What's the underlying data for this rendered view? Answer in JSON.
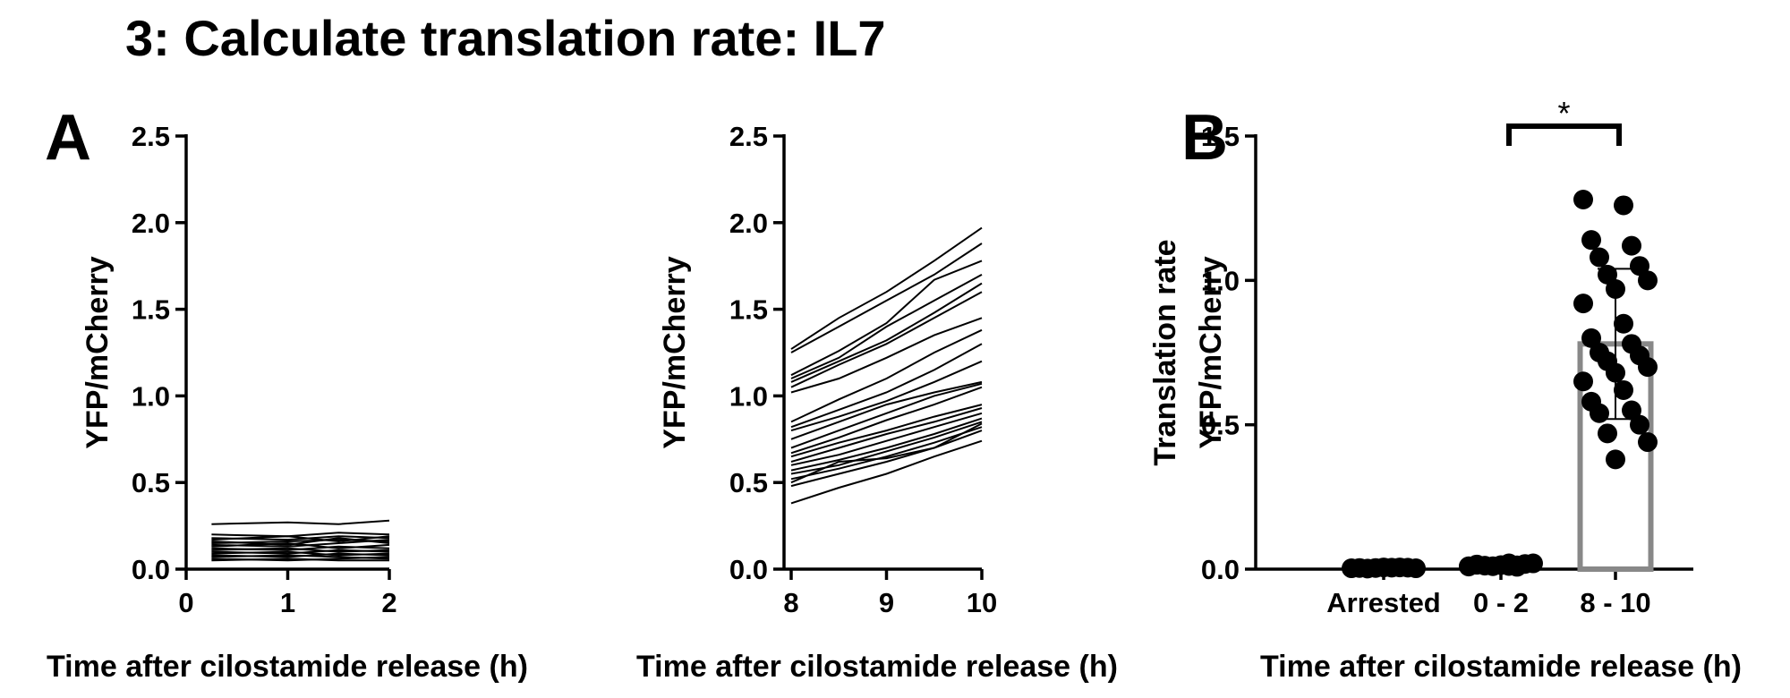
{
  "title": "3: Calculate translation rate: IL7",
  "chart_data": [
    {
      "type": "line",
      "panel_label": "A",
      "ylabel": "YFP/mCherry",
      "xlabel": "Time after cilostamide release (h)",
      "color": "#000000",
      "x": [
        0.25,
        1,
        1.5,
        2
      ],
      "xlim": [
        0,
        2
      ],
      "xticks": [
        0,
        1,
        2
      ],
      "ylim": [
        0,
        2.5
      ],
      "yticks": [
        {
          "value": 0,
          "label": "0.0"
        },
        0.5,
        {
          "value": 1,
          "label": "1.0"
        },
        1.5,
        {
          "value": 2,
          "label": "2.0"
        },
        2.5
      ],
      "series": [
        {
          "values": [
            0.26,
            0.27,
            0.26,
            0.28
          ]
        },
        {
          "values": [
            0.2,
            0.19,
            0.21,
            0.2
          ]
        },
        {
          "values": [
            0.18,
            0.17,
            0.19,
            0.18
          ]
        },
        {
          "values": [
            0.17,
            0.19,
            0.16,
            0.19
          ]
        },
        {
          "values": [
            0.15,
            0.16,
            0.17,
            0.16
          ]
        },
        {
          "values": [
            0.14,
            0.13,
            0.15,
            0.17
          ]
        },
        {
          "values": [
            0.13,
            0.15,
            0.12,
            0.14
          ]
        },
        {
          "values": [
            0.12,
            0.11,
            0.13,
            0.12
          ]
        },
        {
          "values": [
            0.11,
            0.12,
            0.1,
            0.11
          ]
        },
        {
          "values": [
            0.1,
            0.09,
            0.11,
            0.1
          ]
        },
        {
          "values": [
            0.09,
            0.1,
            0.08,
            0.09
          ]
        },
        {
          "values": [
            0.08,
            0.07,
            0.09,
            0.08
          ]
        },
        {
          "values": [
            0.07,
            0.08,
            0.07,
            0.06
          ]
        },
        {
          "values": [
            0.06,
            0.05,
            0.06,
            0.07
          ]
        },
        {
          "values": [
            0.05,
            0.06,
            0.05,
            0.05
          ]
        },
        {
          "values": [
            0.16,
            0.14,
            0.18,
            0.15
          ]
        }
      ]
    },
    {
      "type": "line",
      "ylabel": "YFP/mCherry",
      "xlabel": "Time after cilostamide release (h)",
      "color": "#000000",
      "x": [
        8,
        8.5,
        9,
        9.5,
        10
      ],
      "xlim": [
        8,
        10
      ],
      "xticks": [
        8,
        9,
        10
      ],
      "ylim": [
        0,
        2.5
      ],
      "yticks": [
        {
          "value": 0,
          "label": "0.0"
        },
        0.5,
        {
          "value": 1,
          "label": "1.0"
        },
        1.5,
        {
          "value": 2,
          "label": "2.0"
        },
        2.5
      ],
      "series": [
        {
          "values": [
            1.27,
            1.45,
            1.6,
            1.78,
            1.97
          ]
        },
        {
          "values": [
            1.25,
            1.4,
            1.55,
            1.7,
            1.88
          ]
        },
        {
          "values": [
            1.12,
            1.26,
            1.42,
            1.67,
            1.78
          ]
        },
        {
          "values": [
            1.1,
            1.22,
            1.4,
            1.55,
            1.7
          ]
        },
        {
          "values": [
            1.08,
            1.2,
            1.32,
            1.48,
            1.65
          ]
        },
        {
          "values": [
            1.05,
            1.18,
            1.3,
            1.45,
            1.6
          ]
        },
        {
          "values": [
            1.02,
            1.1,
            1.22,
            1.35,
            1.45
          ]
        },
        {
          "values": [
            0.85,
            0.98,
            1.1,
            1.25,
            1.38
          ]
        },
        {
          "values": [
            0.82,
            0.92,
            1.02,
            1.15,
            1.3
          ]
        },
        {
          "values": [
            0.8,
            0.88,
            0.97,
            1.08,
            1.2
          ]
        },
        {
          "values": [
            0.75,
            0.85,
            0.95,
            1.02,
            1.08
          ]
        },
        {
          "values": [
            0.7,
            0.8,
            0.9,
            1.0,
            1.07
          ]
        },
        {
          "values": [
            0.67,
            0.76,
            0.86,
            0.95,
            1.05
          ]
        },
        {
          "values": [
            0.65,
            0.73,
            0.8,
            0.88,
            0.95
          ]
        },
        {
          "values": [
            0.62,
            0.7,
            0.78,
            0.85,
            0.93
          ]
        },
        {
          "values": [
            0.6,
            0.66,
            0.74,
            0.82,
            0.9
          ]
        },
        {
          "values": [
            0.57,
            0.63,
            0.7,
            0.78,
            0.87
          ]
        },
        {
          "values": [
            0.55,
            0.6,
            0.68,
            0.76,
            0.85
          ]
        },
        {
          "values": [
            0.52,
            0.58,
            0.65,
            0.73,
            0.82
          ]
        },
        {
          "values": [
            0.5,
            0.62,
            0.64,
            0.7,
            0.8
          ]
        },
        {
          "values": [
            0.48,
            0.55,
            0.62,
            0.7,
            0.84
          ]
        },
        {
          "values": [
            0.38,
            0.47,
            0.55,
            0.65,
            0.74
          ]
        }
      ]
    },
    {
      "type": "bar",
      "panel_label": "B",
      "ylabel": [
        "Translation rate",
        "YFP/mCherry"
      ],
      "xlabel": "Time after cilostamide release (h)",
      "color": "#888888",
      "point_color": "#000000",
      "categories": [
        "Arrested",
        "0 - 2",
        "8 - 10"
      ],
      "values": [
        0.004,
        0.013,
        0.78
      ],
      "errors": [
        0.001,
        0.004,
        0.26
      ],
      "points": [
        [
          0.003,
          0.005,
          0.004,
          0.006,
          0.002,
          0.005,
          0.004,
          0.003,
          0.006
        ],
        [
          0.01,
          0.02,
          0.015,
          0.008,
          0.012,
          0.018,
          0.01,
          0.02,
          0.014,
          0.009,
          0.011,
          0.016,
          0.013
        ],
        [
          1.28,
          1.26,
          1.14,
          1.12,
          1.08,
          1.05,
          1.02,
          1.0,
          0.97,
          0.92,
          0.85,
          0.8,
          0.78,
          0.75,
          0.74,
          0.72,
          0.7,
          0.68,
          0.65,
          0.62,
          0.58,
          0.55,
          0.54,
          0.5,
          0.47,
          0.44,
          0.38
        ]
      ],
      "annotation": "*",
      "ylim": [
        0,
        1.5
      ],
      "yticks": [
        {
          "value": 0,
          "label": "0.0"
        },
        0.5,
        {
          "value": 1,
          "label": "1.0"
        },
        1.5
      ]
    }
  ]
}
